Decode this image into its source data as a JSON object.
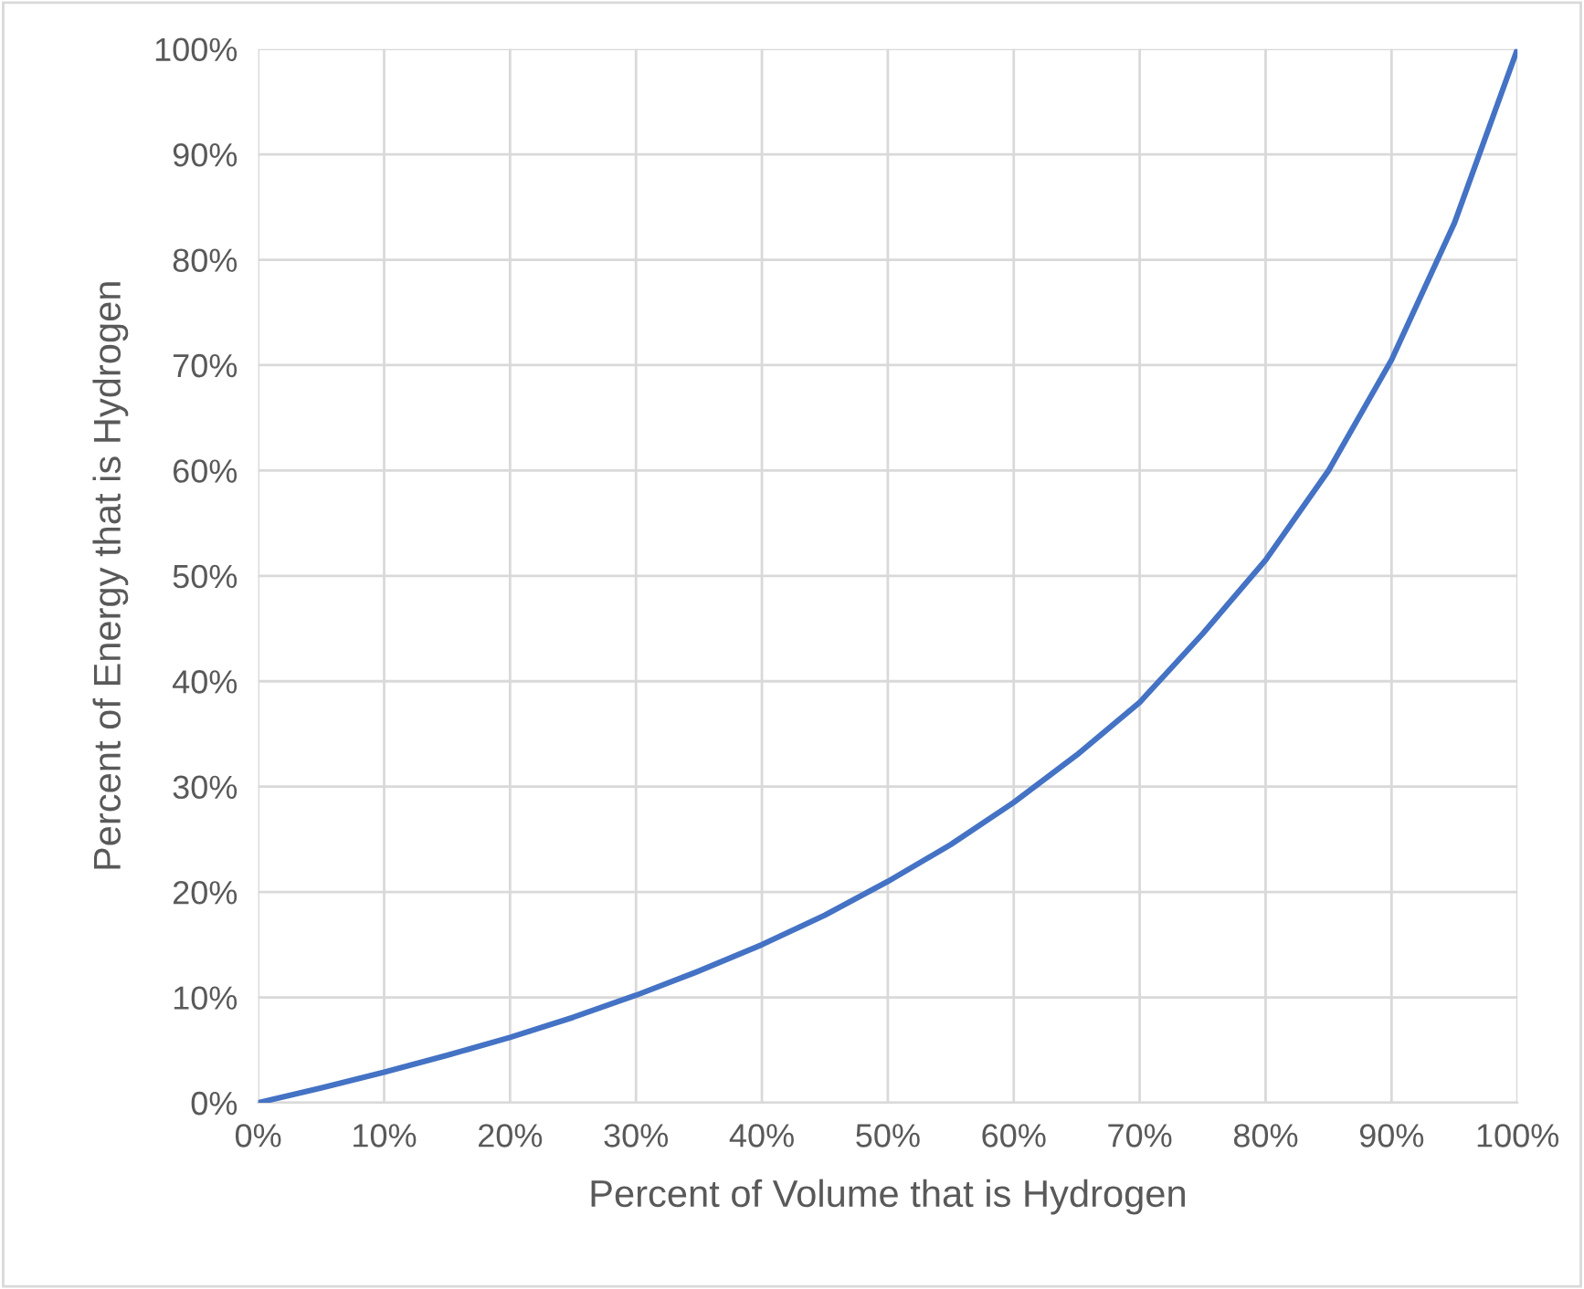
{
  "chart_data": {
    "type": "line",
    "xlabel": "Percent of Volume that is Hydrogen",
    "ylabel": "Percent of Energy that is Hydrogen",
    "x": [
      0,
      5,
      10,
      15,
      20,
      25,
      30,
      35,
      40,
      45,
      50,
      55,
      60,
      65,
      70,
      75,
      80,
      85,
      90,
      95,
      100
    ],
    "series": [
      {
        "color": "#4472c4",
        "values": [
          0,
          1.4,
          2.9,
          4.5,
          6.2,
          8.1,
          10.2,
          12.5,
          15,
          17.8,
          21,
          24.5,
          28.5,
          33,
          38,
          44.5,
          51.5,
          60,
          70.5,
          83.5,
          100
        ]
      }
    ],
    "xlim": [
      0,
      100
    ],
    "ylim": [
      0,
      100
    ],
    "xticks": [
      {
        "value": 0,
        "label": "0%"
      },
      {
        "value": 10,
        "label": "10%"
      },
      {
        "value": 20,
        "label": "20%"
      },
      {
        "value": 30,
        "label": "30%"
      },
      {
        "value": 40,
        "label": "40%"
      },
      {
        "value": 50,
        "label": "50%"
      },
      {
        "value": 60,
        "label": "60%"
      },
      {
        "value": 70,
        "label": "70%"
      },
      {
        "value": 80,
        "label": "80%"
      },
      {
        "value": 90,
        "label": "90%"
      },
      {
        "value": 100,
        "label": "100%"
      }
    ],
    "yticks": [
      {
        "value": 0,
        "label": "0%"
      },
      {
        "value": 10,
        "label": "10%"
      },
      {
        "value": 20,
        "label": "20%"
      },
      {
        "value": 30,
        "label": "30%"
      },
      {
        "value": 40,
        "label": "40%"
      },
      {
        "value": 50,
        "label": "50%"
      },
      {
        "value": 60,
        "label": "60%"
      },
      {
        "value": 70,
        "label": "70%"
      },
      {
        "value": 80,
        "label": "80%"
      },
      {
        "value": 90,
        "label": "90%"
      },
      {
        "value": 100,
        "label": "100%"
      }
    ],
    "grid": true,
    "marker": "none",
    "line_style": "solid",
    "legend": false
  }
}
